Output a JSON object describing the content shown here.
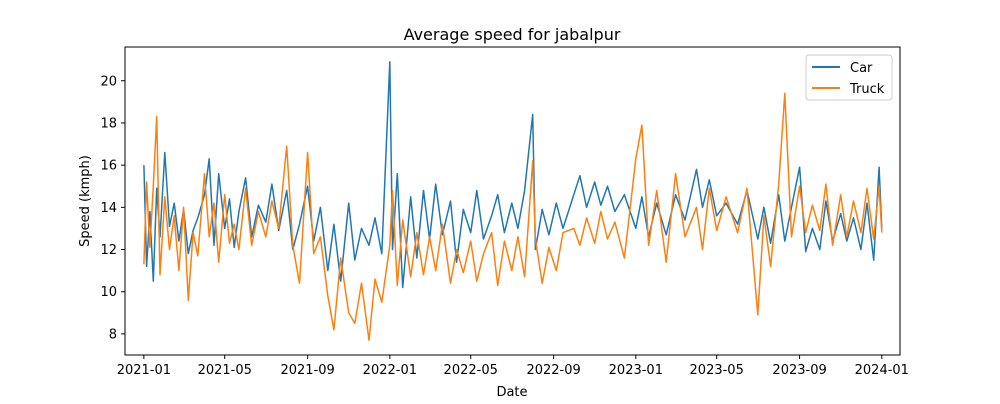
{
  "chart_data": {
    "type": "line",
    "title": "Average speed for jabalpur",
    "xlabel": "Date",
    "ylabel": "Speed (kmph)",
    "x_range": [
      "2020-12-04",
      "2024-01-28"
    ],
    "ylim": [
      7.0,
      21.6
    ],
    "x_ticks": [
      "2021-01-01",
      "2021-05-01",
      "2021-09-01",
      "2022-01-01",
      "2022-05-01",
      "2022-09-01",
      "2023-01-01",
      "2023-05-01",
      "2023-09-01",
      "2024-01-01"
    ],
    "x_tick_labels": [
      "2021-01",
      "2021-05",
      "2021-09",
      "2022-01",
      "2022-05",
      "2022-09",
      "2023-01",
      "2023-05",
      "2023-09",
      "2024-01"
    ],
    "y_ticks": [
      8,
      10,
      12,
      14,
      16,
      18,
      20
    ],
    "y_tick_labels": [
      "8",
      "10",
      "12",
      "14",
      "16",
      "18",
      "20"
    ],
    "grid": false,
    "legend_position": "top-right",
    "series": [
      {
        "name": "Car",
        "color": "#1f77b4",
        "points": [
          [
            "2021-01-01",
            16.0
          ],
          [
            "2021-01-05",
            11.2
          ],
          [
            "2021-01-10",
            13.8
          ],
          [
            "2021-01-15",
            10.5
          ],
          [
            "2021-01-20",
            14.9
          ],
          [
            "2021-01-25",
            12.6
          ],
          [
            "2021-02-01",
            16.6
          ],
          [
            "2021-02-08",
            13.1
          ],
          [
            "2021-02-15",
            14.2
          ],
          [
            "2021-02-22",
            12.4
          ],
          [
            "2021-03-01",
            13.9
          ],
          [
            "2021-03-08",
            11.8
          ],
          [
            "2021-03-15",
            12.9
          ],
          [
            "2021-03-22",
            13.5
          ],
          [
            "2021-04-01",
            14.6
          ],
          [
            "2021-04-08",
            16.3
          ],
          [
            "2021-04-15",
            12.2
          ],
          [
            "2021-04-22",
            15.6
          ],
          [
            "2021-05-01",
            13.0
          ],
          [
            "2021-05-08",
            14.4
          ],
          [
            "2021-05-15",
            12.1
          ],
          [
            "2021-05-22",
            13.8
          ],
          [
            "2021-06-01",
            15.4
          ],
          [
            "2021-06-10",
            12.6
          ],
          [
            "2021-06-20",
            14.1
          ],
          [
            "2021-07-01",
            13.3
          ],
          [
            "2021-07-10",
            15.1
          ],
          [
            "2021-07-20",
            12.9
          ],
          [
            "2021-08-01",
            14.8
          ],
          [
            "2021-08-10",
            12.0
          ],
          [
            "2021-08-20",
            13.2
          ],
          [
            "2021-09-01",
            15.0
          ],
          [
            "2021-09-10",
            12.4
          ],
          [
            "2021-09-20",
            14.0
          ],
          [
            "2021-10-01",
            11.0
          ],
          [
            "2021-10-10",
            13.2
          ],
          [
            "2021-10-20",
            10.5
          ],
          [
            "2021-11-01",
            14.2
          ],
          [
            "2021-11-10",
            11.5
          ],
          [
            "2021-11-20",
            13.0
          ],
          [
            "2021-12-01",
            12.2
          ],
          [
            "2021-12-10",
            13.5
          ],
          [
            "2021-12-20",
            11.8
          ],
          [
            "2022-01-01",
            20.9
          ],
          [
            "2022-01-05",
            12.0
          ],
          [
            "2022-01-12",
            15.6
          ],
          [
            "2022-01-20",
            10.2
          ],
          [
            "2022-02-01",
            14.5
          ],
          [
            "2022-02-10",
            11.6
          ],
          [
            "2022-02-20",
            14.8
          ],
          [
            "2022-03-01",
            12.5
          ],
          [
            "2022-03-10",
            15.1
          ],
          [
            "2022-03-20",
            12.7
          ],
          [
            "2022-04-01",
            14.3
          ],
          [
            "2022-04-10",
            11.4
          ],
          [
            "2022-04-20",
            13.9
          ],
          [
            "2022-05-01",
            12.8
          ],
          [
            "2022-05-10",
            14.8
          ],
          [
            "2022-05-20",
            12.5
          ],
          [
            "2022-06-01",
            13.6
          ],
          [
            "2022-06-10",
            14.6
          ],
          [
            "2022-06-20",
            12.8
          ],
          [
            "2022-07-01",
            14.2
          ],
          [
            "2022-07-10",
            13.0
          ],
          [
            "2022-07-20",
            14.8
          ],
          [
            "2022-08-01",
            18.4
          ],
          [
            "2022-08-05",
            12.0
          ],
          [
            "2022-08-15",
            13.9
          ],
          [
            "2022-08-25",
            12.7
          ],
          [
            "2022-09-05",
            14.2
          ],
          [
            "2022-09-15",
            13.0
          ],
          [
            "2022-10-01",
            14.6
          ],
          [
            "2022-10-10",
            15.5
          ],
          [
            "2022-10-20",
            14.0
          ],
          [
            "2022-11-01",
            15.2
          ],
          [
            "2022-11-10",
            14.1
          ],
          [
            "2022-11-20",
            15.0
          ],
          [
            "2022-12-01",
            13.8
          ],
          [
            "2022-12-15",
            14.6
          ],
          [
            "2023-01-01",
            13.0
          ],
          [
            "2023-01-10",
            14.5
          ],
          [
            "2023-01-20",
            12.6
          ],
          [
            "2023-02-01",
            14.2
          ],
          [
            "2023-02-15",
            12.7
          ],
          [
            "2023-03-01",
            14.6
          ],
          [
            "2023-03-15",
            13.4
          ],
          [
            "2023-04-01",
            15.8
          ],
          [
            "2023-04-10",
            14.0
          ],
          [
            "2023-04-20",
            15.3
          ],
          [
            "2023-05-01",
            13.6
          ],
          [
            "2023-05-15",
            14.2
          ],
          [
            "2023-06-01",
            13.2
          ],
          [
            "2023-06-15",
            14.8
          ],
          [
            "2023-07-01",
            12.5
          ],
          [
            "2023-07-10",
            14.0
          ],
          [
            "2023-07-20",
            12.3
          ],
          [
            "2023-08-01",
            14.6
          ],
          [
            "2023-08-10",
            12.4
          ],
          [
            "2023-08-20",
            14.0
          ],
          [
            "2023-09-01",
            15.9
          ],
          [
            "2023-09-10",
            11.9
          ],
          [
            "2023-09-20",
            13.0
          ],
          [
            "2023-10-01",
            12.0
          ],
          [
            "2023-10-10",
            14.3
          ],
          [
            "2023-10-20",
            12.4
          ],
          [
            "2023-11-01",
            13.7
          ],
          [
            "2023-11-10",
            12.4
          ],
          [
            "2023-11-20",
            13.5
          ],
          [
            "2023-12-01",
            12.0
          ],
          [
            "2023-12-10",
            14.2
          ],
          [
            "2023-12-20",
            11.5
          ],
          [
            "2023-12-28",
            15.9
          ],
          [
            "2024-01-01",
            13.0
          ]
        ]
      },
      {
        "name": "Truck",
        "color": "#ff7f0e",
        "points": [
          [
            "2021-01-01",
            11.3
          ],
          [
            "2021-01-05",
            15.2
          ],
          [
            "2021-01-10",
            12.1
          ],
          [
            "2021-01-15",
            15.0
          ],
          [
            "2021-01-20",
            18.3
          ],
          [
            "2021-01-25",
            10.8
          ],
          [
            "2021-02-01",
            14.5
          ],
          [
            "2021-02-08",
            12.0
          ],
          [
            "2021-02-15",
            13.6
          ],
          [
            "2021-02-22",
            11.0
          ],
          [
            "2021-03-01",
            14.0
          ],
          [
            "2021-03-08",
            9.6
          ],
          [
            "2021-03-15",
            12.8
          ],
          [
            "2021-03-22",
            11.7
          ],
          [
            "2021-04-01",
            15.6
          ],
          [
            "2021-04-08",
            12.6
          ],
          [
            "2021-04-15",
            14.2
          ],
          [
            "2021-04-22",
            11.4
          ],
          [
            "2021-05-01",
            14.6
          ],
          [
            "2021-05-08",
            12.3
          ],
          [
            "2021-05-15",
            13.2
          ],
          [
            "2021-05-22",
            12.0
          ],
          [
            "2021-06-01",
            14.9
          ],
          [
            "2021-06-10",
            12.2
          ],
          [
            "2021-06-20",
            13.8
          ],
          [
            "2021-07-01",
            12.6
          ],
          [
            "2021-07-10",
            14.3
          ],
          [
            "2021-07-20",
            13.0
          ],
          [
            "2021-08-01",
            16.9
          ],
          [
            "2021-08-10",
            12.2
          ],
          [
            "2021-08-20",
            10.4
          ],
          [
            "2021-09-01",
            16.6
          ],
          [
            "2021-09-10",
            11.8
          ],
          [
            "2021-09-20",
            12.6
          ],
          [
            "2021-10-01",
            9.8
          ],
          [
            "2021-10-10",
            8.2
          ],
          [
            "2021-10-20",
            11.6
          ],
          [
            "2021-11-01",
            9.0
          ],
          [
            "2021-11-10",
            8.5
          ],
          [
            "2021-11-20",
            10.4
          ],
          [
            "2021-12-01",
            7.7
          ],
          [
            "2021-12-10",
            10.6
          ],
          [
            "2021-12-20",
            9.5
          ],
          [
            "2022-01-01",
            12.2
          ],
          [
            "2022-01-05",
            14.8
          ],
          [
            "2022-01-12",
            10.3
          ],
          [
            "2022-01-20",
            13.4
          ],
          [
            "2022-02-01",
            10.7
          ],
          [
            "2022-02-10",
            12.8
          ],
          [
            "2022-02-20",
            10.8
          ],
          [
            "2022-03-01",
            12.6
          ],
          [
            "2022-03-10",
            11.0
          ],
          [
            "2022-03-20",
            13.2
          ],
          [
            "2022-04-01",
            10.4
          ],
          [
            "2022-04-10",
            12.0
          ],
          [
            "2022-04-20",
            10.9
          ],
          [
            "2022-05-01",
            12.4
          ],
          [
            "2022-05-10",
            10.5
          ],
          [
            "2022-05-20",
            11.8
          ],
          [
            "2022-06-01",
            12.8
          ],
          [
            "2022-06-10",
            10.3
          ],
          [
            "2022-06-20",
            12.4
          ],
          [
            "2022-07-01",
            11.0
          ],
          [
            "2022-07-10",
            12.6
          ],
          [
            "2022-07-20",
            10.7
          ],
          [
            "2022-08-01",
            16.2
          ],
          [
            "2022-08-05",
            12.5
          ],
          [
            "2022-08-15",
            10.4
          ],
          [
            "2022-08-25",
            12.1
          ],
          [
            "2022-09-05",
            11.0
          ],
          [
            "2022-09-15",
            12.8
          ],
          [
            "2022-10-01",
            13.0
          ],
          [
            "2022-10-10",
            12.2
          ],
          [
            "2022-10-20",
            13.5
          ],
          [
            "2022-11-01",
            12.3
          ],
          [
            "2022-11-10",
            13.8
          ],
          [
            "2022-11-20",
            12.5
          ],
          [
            "2022-12-01",
            13.3
          ],
          [
            "2022-12-15",
            11.6
          ],
          [
            "2023-01-01",
            16.3
          ],
          [
            "2023-01-10",
            17.9
          ],
          [
            "2023-01-20",
            12.2
          ],
          [
            "2023-02-01",
            14.8
          ],
          [
            "2023-02-15",
            11.4
          ],
          [
            "2023-03-01",
            15.6
          ],
          [
            "2023-03-15",
            12.6
          ],
          [
            "2023-04-01",
            14.0
          ],
          [
            "2023-04-10",
            12.0
          ],
          [
            "2023-04-20",
            14.9
          ],
          [
            "2023-05-01",
            12.9
          ],
          [
            "2023-05-15",
            14.5
          ],
          [
            "2023-06-01",
            12.8
          ],
          [
            "2023-06-15",
            14.9
          ],
          [
            "2023-07-01",
            8.9
          ],
          [
            "2023-07-10",
            13.6
          ],
          [
            "2023-07-20",
            11.2
          ],
          [
            "2023-08-01",
            15.1
          ],
          [
            "2023-08-10",
            19.4
          ],
          [
            "2023-08-20",
            12.6
          ],
          [
            "2023-09-01",
            15.0
          ],
          [
            "2023-09-10",
            12.8
          ],
          [
            "2023-09-20",
            14.1
          ],
          [
            "2023-10-01",
            12.9
          ],
          [
            "2023-10-10",
            15.1
          ],
          [
            "2023-10-20",
            12.2
          ],
          [
            "2023-11-01",
            14.6
          ],
          [
            "2023-11-10",
            12.6
          ],
          [
            "2023-11-20",
            14.3
          ],
          [
            "2023-12-01",
            12.8
          ],
          [
            "2023-12-10",
            14.9
          ],
          [
            "2023-12-20",
            12.5
          ],
          [
            "2023-12-28",
            15.0
          ],
          [
            "2024-01-01",
            12.8
          ]
        ]
      }
    ]
  }
}
